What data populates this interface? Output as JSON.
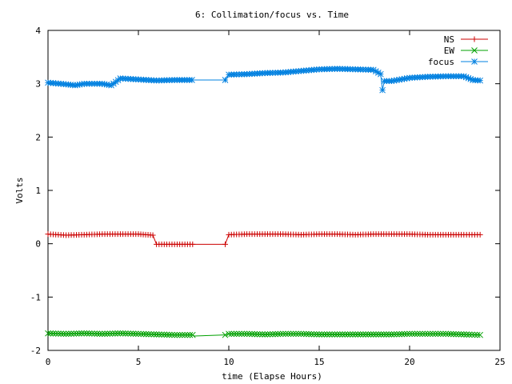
{
  "chart_data": {
    "type": "line",
    "title": "6: Collimation/focus vs. Time",
    "xlabel": "time (Elapse Hours)",
    "ylabel": "Volts",
    "xlim": [
      0,
      25
    ],
    "ylim": [
      -2,
      4
    ],
    "xticks": [
      0,
      5,
      10,
      15,
      20,
      25
    ],
    "yticks": [
      -2,
      -1,
      0,
      1,
      2,
      3,
      4
    ],
    "xtick_labels": [
      "0",
      "5",
      "10",
      "15",
      "20",
      "25"
    ],
    "ytick_labels": [
      "-2",
      "-1",
      "0",
      "1",
      "2",
      "3",
      "4"
    ],
    "legend_position": "top-right",
    "grid": false,
    "series": [
      {
        "name": "NS",
        "color": "#cc0000",
        "marker": "plus",
        "x": [
          0,
          1,
          2,
          3,
          4,
          5,
          5.8,
          6,
          7,
          8,
          8.1,
          9.8,
          10,
          11,
          12,
          13,
          14,
          15,
          16,
          17,
          18,
          19,
          20,
          21,
          22,
          23,
          23.9
        ],
        "y": [
          0.18,
          0.16,
          0.17,
          0.18,
          0.18,
          0.18,
          0.16,
          -0.01,
          -0.01,
          -0.01,
          -0.01,
          -0.01,
          0.17,
          0.18,
          0.18,
          0.18,
          0.17,
          0.18,
          0.18,
          0.17,
          0.18,
          0.18,
          0.18,
          0.17,
          0.17,
          0.17,
          0.17
        ]
      },
      {
        "name": "EW",
        "color": "#00a000",
        "marker": "cross",
        "x": [
          0,
          1,
          2,
          3,
          4,
          5,
          6,
          7,
          8,
          8.1,
          9.8,
          10,
          11,
          12,
          13,
          14,
          15,
          16,
          17,
          18,
          19,
          20,
          21,
          22,
          23,
          23.9
        ],
        "y": [
          -1.68,
          -1.69,
          -1.68,
          -1.69,
          -1.68,
          -1.69,
          -1.7,
          -1.71,
          -1.71,
          -1.73,
          -1.71,
          -1.69,
          -1.69,
          -1.7,
          -1.69,
          -1.69,
          -1.7,
          -1.7,
          -1.7,
          -1.7,
          -1.7,
          -1.69,
          -1.69,
          -1.69,
          -1.7,
          -1.71
        ]
      },
      {
        "name": "focus",
        "color": "#0080e0",
        "marker": "star",
        "x": [
          0,
          1,
          1.5,
          2,
          3,
          3.5,
          4,
          5,
          6,
          7,
          8.1,
          9.8,
          10,
          11,
          12,
          13,
          14,
          15,
          16,
          17,
          18,
          18.4,
          18.5,
          18.6,
          19,
          20,
          21,
          22,
          23,
          23.5,
          23.9
        ],
        "y": [
          3.02,
          2.99,
          2.97,
          3.0,
          3.0,
          2.97,
          3.1,
          3.08,
          3.06,
          3.07,
          3.07,
          3.07,
          3.17,
          3.18,
          3.2,
          3.21,
          3.24,
          3.27,
          3.28,
          3.27,
          3.26,
          3.18,
          2.88,
          3.05,
          3.05,
          3.11,
          3.13,
          3.14,
          3.14,
          3.07,
          3.06
        ]
      }
    ]
  }
}
